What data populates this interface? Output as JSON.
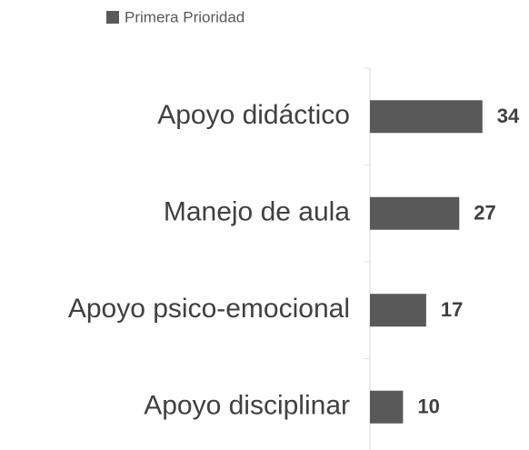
{
  "chart_data": {
    "type": "bar",
    "orientation": "horizontal",
    "categories": [
      "Apoyo didáctico",
      "Manejo de aula",
      "Apoyo psico-emocional",
      "Apoyo disciplinar"
    ],
    "series": [
      {
        "name": "Primera Prioridad",
        "color": "#595959",
        "values": [
          34,
          27,
          17,
          10
        ]
      }
    ],
    "legend": "top"
  }
}
